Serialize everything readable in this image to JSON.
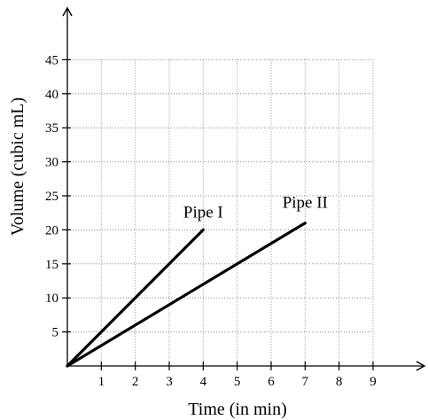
{
  "chart_data": {
    "type": "line",
    "title": "",
    "xlabel": "Time (in min)",
    "ylabel": "Volume (cubic mL)",
    "xlim": [
      0,
      9
    ],
    "ylim": [
      0,
      45
    ],
    "x_ticks": [
      "1",
      "2",
      "3",
      "4",
      "5",
      "6",
      "7",
      "8",
      "9"
    ],
    "y_ticks": [
      "5",
      "10",
      "15",
      "20",
      "25",
      "30",
      "35",
      "40",
      "45"
    ],
    "grid": true,
    "axis_arrows": true,
    "series": [
      {
        "name": "Pipe I",
        "x": [
          0,
          4
        ],
        "y": [
          0,
          20
        ],
        "color": "#000000"
      },
      {
        "name": "Pipe II",
        "x": [
          0,
          7
        ],
        "y": [
          0,
          21
        ],
        "color": "#000000"
      }
    ]
  }
}
